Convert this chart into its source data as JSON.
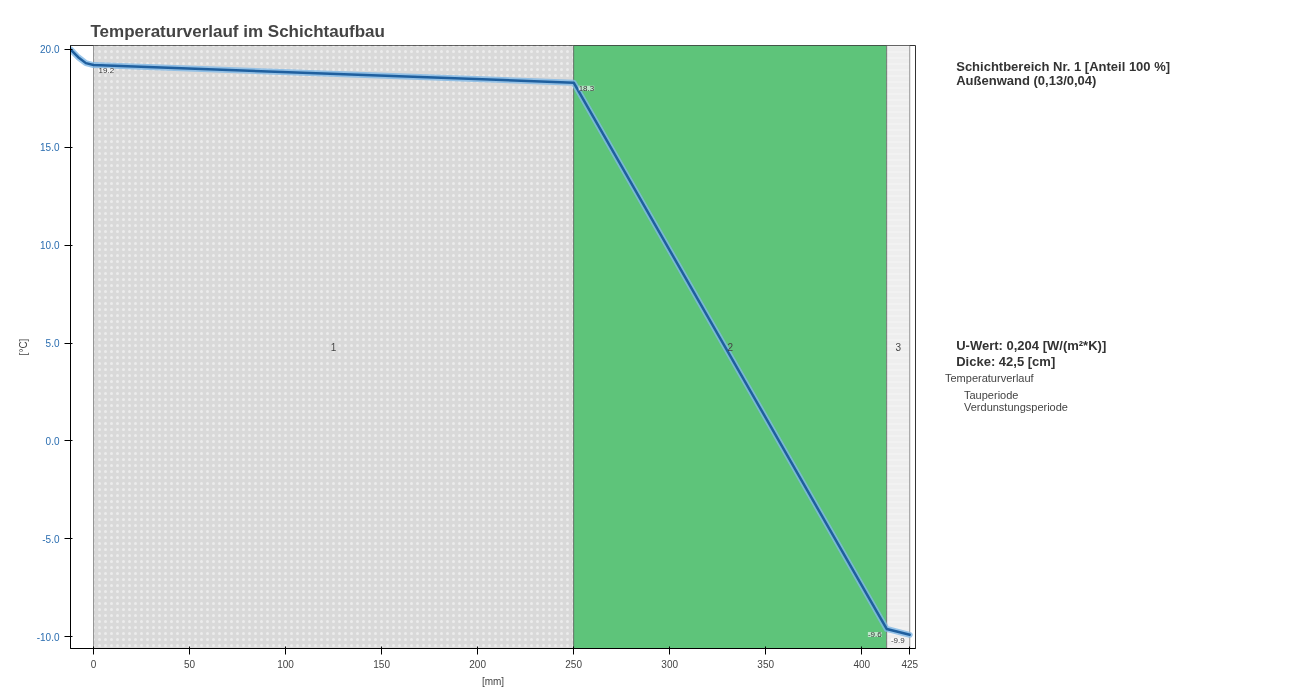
{
  "chart_data": {
    "type": "line",
    "title": "Temperaturverlauf im Schichtaufbau",
    "xlabel": "[mm]",
    "ylabel": "[°C]",
    "legend_title": "Temperaturverlauf",
    "legend": "right",
    "grid": false,
    "marker": "none",
    "line_style": "solid",
    "x": [
      -12,
      -8,
      -4,
      0,
      250,
      413,
      425
    ],
    "series": [
      {
        "name": "Tauperiode",
        "color": "#1f5f9e",
        "values": [
          20.0,
          19.6,
          19.3,
          19.2,
          18.3,
          -9.6,
          -9.9
        ]
      },
      {
        "name": "Verdunstungsperiode",
        "color": "#7fb8e6",
        "values": [
          20.0,
          19.6,
          19.3,
          19.2,
          18.3,
          -9.6,
          -9.9
        ]
      }
    ],
    "xlim": [
      -12,
      428
    ],
    "ylim": [
      -10.6,
      20.2
    ],
    "xticks": [
      0,
      50,
      100,
      150,
      200,
      250,
      300,
      350,
      400,
      425
    ],
    "yticks": [
      {
        "value": 20,
        "label": "20.0"
      },
      {
        "value": 15,
        "label": "15.0"
      },
      {
        "value": 10,
        "label": "10.0"
      },
      {
        "value": 5,
        "label": "5.0"
      },
      {
        "value": 0,
        "label": "0.0"
      },
      {
        "value": -5,
        "label": "-5.0"
      },
      {
        "value": -10,
        "label": "-10.0"
      }
    ],
    "bands": [
      {
        "axis": "x",
        "from": 0,
        "to": 250,
        "label": "1",
        "color": "#d9d9d9"
      },
      {
        "axis": "x",
        "from": 250,
        "to": 413,
        "label": "2",
        "color": "#5ec47a"
      },
      {
        "axis": "x",
        "from": 413,
        "to": 425,
        "label": "3",
        "color": "#eeeeee"
      }
    ],
    "annotations": [
      {
        "text": "19.2",
        "x": 0,
        "y": 19.2
      },
      {
        "text": "18.3",
        "x": 250,
        "y": 18.3
      },
      {
        "text": "-9.6",
        "x": 413,
        "y": -9.6
      },
      {
        "text": "-9.9",
        "x": 425,
        "y": -9.9
      },
      "Schichtbereich Nr. 1 [Anteil 100 %]",
      "Außenwand (0,13/0,04)",
      "U-Wert: 0,204 [W/(m²*K)]",
      "Dicke: 42,5 [cm]"
    ]
  }
}
